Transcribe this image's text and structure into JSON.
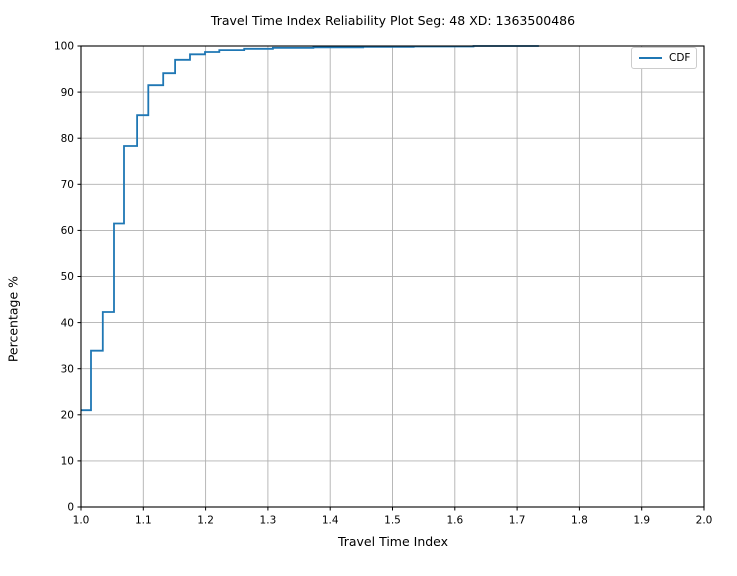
{
  "chart_data": {
    "type": "line",
    "subtype": "step-cdf",
    "title": "Travel Time Index Reliability Plot Seg: 48 XD: 1363500486",
    "xlabel": "Travel Time Index",
    "ylabel": "Percentage %",
    "xlim": [
      1.0,
      2.0
    ],
    "ylim": [
      0,
      100
    ],
    "x_ticks": [
      1.0,
      1.1,
      1.2,
      1.3,
      1.4,
      1.5,
      1.6,
      1.7,
      1.8,
      1.9,
      2.0
    ],
    "x_tick_labels": [
      "1.0",
      "1.1",
      "1.2",
      "1.3",
      "1.4",
      "1.5",
      "1.6",
      "1.7",
      "1.8",
      "1.9",
      "2.0"
    ],
    "y_ticks": [
      0,
      10,
      20,
      30,
      40,
      50,
      60,
      70,
      80,
      90,
      100
    ],
    "y_tick_labels": [
      "0",
      "10",
      "20",
      "30",
      "40",
      "50",
      "60",
      "70",
      "80",
      "90",
      "100"
    ],
    "grid": true,
    "legend": {
      "position": "upper right",
      "entries": [
        {
          "label": "CDF",
          "color": "#1f77b4"
        }
      ]
    },
    "series": [
      {
        "name": "CDF",
        "color": "#1f77b4",
        "step": "post",
        "points": [
          [
            1.0,
            21.0
          ],
          [
            1.016,
            33.9
          ],
          [
            1.035,
            42.3
          ],
          [
            1.053,
            61.5
          ],
          [
            1.069,
            78.3
          ],
          [
            1.09,
            85.0
          ],
          [
            1.108,
            91.5
          ],
          [
            1.132,
            94.1
          ],
          [
            1.151,
            97.0
          ],
          [
            1.175,
            98.2
          ],
          [
            1.199,
            98.7
          ],
          [
            1.222,
            99.1
          ],
          [
            1.262,
            99.4
          ],
          [
            1.308,
            99.6
          ],
          [
            1.373,
            99.7
          ],
          [
            1.453,
            99.8
          ],
          [
            1.534,
            99.9
          ],
          [
            1.63,
            100.0
          ],
          [
            1.735,
            100.0
          ]
        ]
      }
    ],
    "colors": {
      "line": "#1f77b4",
      "grid": "#b0b0b0",
      "spine": "#000000",
      "tick_text": "#000000",
      "background": "#ffffff",
      "legend_border": "#cccccc"
    }
  }
}
